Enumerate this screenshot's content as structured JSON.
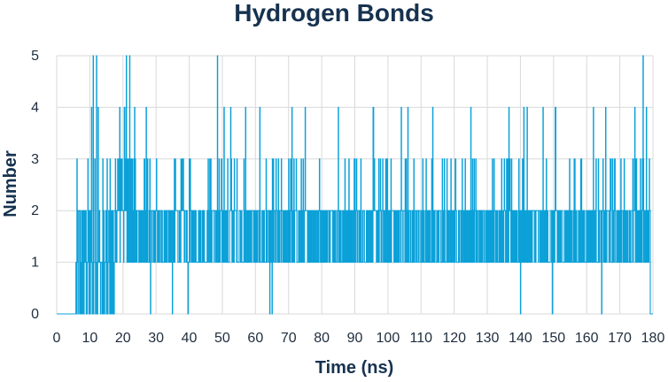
{
  "chart_data": {
    "type": "line",
    "title": "Hydrogen Bonds",
    "xlabel": "Time (ns)",
    "ylabel": "Number",
    "xlim": [
      0,
      180
    ],
    "ylim": [
      0,
      5
    ],
    "x_ticks": [
      0,
      10,
      20,
      30,
      40,
      50,
      60,
      70,
      80,
      90,
      100,
      110,
      120,
      130,
      140,
      150,
      160,
      170,
      180
    ],
    "y_ticks": [
      0,
      1,
      2,
      3,
      4,
      5
    ],
    "grid": true,
    "legend": "none",
    "colors": {
      "series": "#0aa0d8",
      "text": "#16324f",
      "grid": "#d9d9d9"
    },
    "series": [
      {
        "x_start": 0,
        "x_end": 180,
        "segments": [
          {
            "from": 0,
            "to": 5.8,
            "baseline": 0,
            "spikes": []
          },
          {
            "from": 5.8,
            "to": 18.0,
            "values": [
              0,
              1,
              2
            ],
            "peaks": [
              3,
              4,
              5
            ]
          },
          {
            "from": 18.0,
            "to": 22.5,
            "values": [
              1,
              2,
              3
            ],
            "peaks": [
              4,
              5
            ]
          },
          {
            "from": 22.5,
            "to": 179.2,
            "values": [
              1,
              2
            ],
            "peaks": [
              3,
              4,
              5
            ],
            "dips": [
              0
            ]
          },
          {
            "from": 179.2,
            "to": 180,
            "baseline": 0,
            "spikes": []
          }
        ],
        "peak_times_at_5": [
          11.0,
          12.0,
          21.0,
          22.0,
          48.5,
          177.0
        ],
        "peak_times_at_4": [
          10.5,
          12.5,
          19.0,
          20.5,
          23.5,
          27.0,
          50.5,
          52.5,
          57.0,
          71.0,
          75.0,
          85.0,
          95.5,
          104.0,
          106.0,
          113.5,
          125.0,
          141.0,
          150.5,
          162.0,
          174.5,
          178.0
        ]
      }
    ]
  }
}
